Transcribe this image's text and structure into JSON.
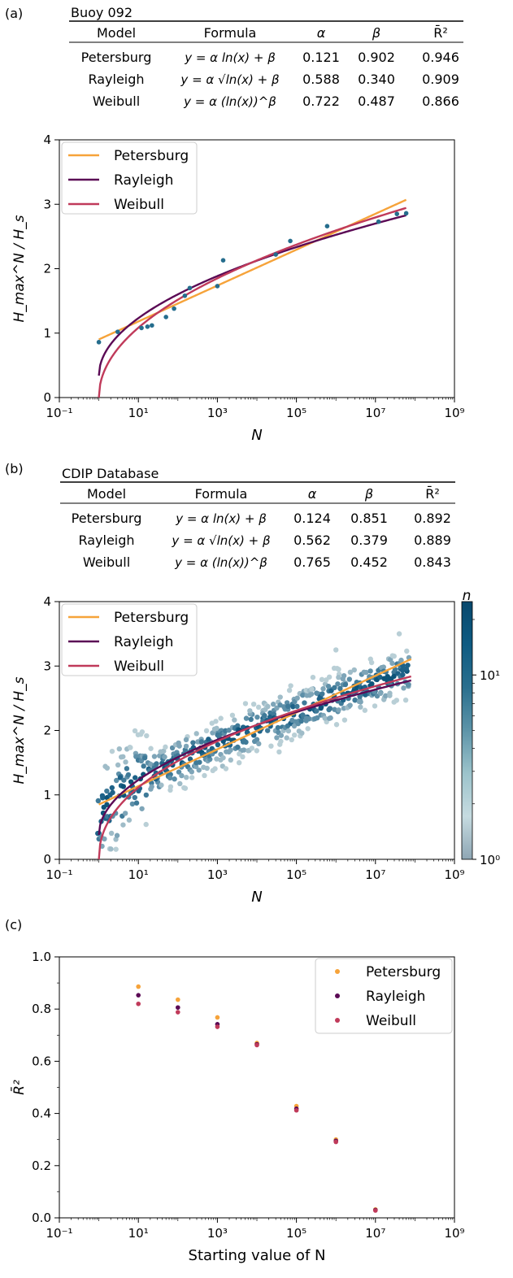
{
  "panel_labels": [
    "(a)",
    "(b)",
    "(c)"
  ],
  "colors": {
    "petersburg": "#f6a33a",
    "rayleigh": "#5b0a55",
    "weibull": "#c03a5a",
    "scatter": "#256d8d"
  },
  "tables": [
    {
      "title": "Buoy 092",
      "headers": [
        "Model",
        "Formula",
        "α",
        "β",
        "R̄²"
      ],
      "rows": [
        {
          "model": "Petersburg",
          "formula": "y = α ln(x) + β",
          "alpha": "0.121",
          "beta": "0.902",
          "r2": "0.946"
        },
        {
          "model": "Rayleigh",
          "formula": "y = α √ln(x) + β",
          "alpha": "0.588",
          "beta": "0.340",
          "r2": "0.909"
        },
        {
          "model": "Weibull",
          "formula": "y = α (ln(x))^β",
          "alpha": "0.722",
          "beta": "0.487",
          "r2": "0.866"
        }
      ]
    },
    {
      "title": "CDIP Database",
      "headers": [
        "Model",
        "Formula",
        "α",
        "β",
        "R̄²"
      ],
      "rows": [
        {
          "model": "Petersburg",
          "formula": "y = α ln(x) + β",
          "alpha": "0.124",
          "beta": "0.851",
          "r2": "0.892"
        },
        {
          "model": "Rayleigh",
          "formula": "y = α √ln(x) + β",
          "alpha": "0.562",
          "beta": "0.379",
          "r2": "0.889"
        },
        {
          "model": "Weibull",
          "formula": "y = α (ln(x))^β",
          "alpha": "0.765",
          "beta": "0.452",
          "r2": "0.843"
        }
      ]
    }
  ],
  "chart_data": [
    {
      "type": "line",
      "xlabel": "N",
      "ylabel": "H_max^N / H_s",
      "xscale": "log",
      "xlim": [
        0.1,
        1000000000
      ],
      "ylim": [
        0,
        4
      ],
      "xticks": [
        "10⁻¹",
        "10¹",
        "10³",
        "10⁵",
        "10⁷",
        "10⁹"
      ],
      "yticks": [
        "0",
        "1",
        "2",
        "3",
        "4"
      ],
      "legend": [
        "Petersburg",
        "Rayleigh",
        "Weibull"
      ],
      "legend_position": "upper-left",
      "series": [
        {
          "name": "Petersburg",
          "model": "petersburg",
          "alpha": 0.121,
          "beta": 0.902,
          "xrange": [
            1,
            60000000
          ]
        },
        {
          "name": "Rayleigh",
          "model": "rayleigh",
          "alpha": 0.588,
          "beta": 0.34,
          "xrange": [
            1,
            60000000
          ]
        },
        {
          "name": "Weibull",
          "model": "weibull",
          "alpha": 0.722,
          "beta": 0.487,
          "xrange": [
            1,
            60000000
          ]
        }
      ],
      "points": [
        {
          "x": 1,
          "y": 0.86
        },
        {
          "x": 3,
          "y": 1.02
        },
        {
          "x": 12,
          "y": 1.08
        },
        {
          "x": 17,
          "y": 1.1
        },
        {
          "x": 22,
          "y": 1.12
        },
        {
          "x": 50,
          "y": 1.25
        },
        {
          "x": 80,
          "y": 1.38
        },
        {
          "x": 150,
          "y": 1.58
        },
        {
          "x": 200,
          "y": 1.7
        },
        {
          "x": 1000,
          "y": 1.73
        },
        {
          "x": 1400,
          "y": 2.13
        },
        {
          "x": 30000,
          "y": 2.22
        },
        {
          "x": 70000,
          "y": 2.43
        },
        {
          "x": 600000,
          "y": 2.66
        },
        {
          "x": 12000000,
          "y": 2.73
        },
        {
          "x": 35000000,
          "y": 2.85
        },
        {
          "x": 60000000,
          "y": 2.86
        }
      ]
    },
    {
      "type": "heatmap",
      "xlabel": "N",
      "ylabel": "H_max^N / H_s",
      "xscale": "log",
      "xlim": [
        0.1,
        1000000000
      ],
      "ylim": [
        0,
        4
      ],
      "xticks": [
        "10⁻¹",
        "10¹",
        "10³",
        "10⁵",
        "10⁷",
        "10⁹"
      ],
      "yticks": [
        "0",
        "1",
        "2",
        "3",
        "4"
      ],
      "legend": [
        "Petersburg",
        "Rayleigh",
        "Weibull"
      ],
      "legend_position": "upper-left",
      "colorbar": {
        "label": "n",
        "scale": "log",
        "range": [
          1,
          25
        ],
        "ticks": [
          "10⁰",
          "10¹"
        ]
      },
      "series": [
        {
          "name": "Petersburg",
          "model": "petersburg",
          "alpha": 0.124,
          "beta": 0.851,
          "xrange": [
            1,
            80000000
          ]
        },
        {
          "name": "Rayleigh",
          "model": "rayleigh",
          "alpha": 0.562,
          "beta": 0.379,
          "xrange": [
            1,
            80000000
          ]
        },
        {
          "name": "Weibull",
          "model": "weibull",
          "alpha": 0.765,
          "beta": 0.452,
          "xrange": [
            1,
            80000000
          ]
        }
      ],
      "density_band": {
        "center_model": "petersburg",
        "spread": 0.35,
        "outliers": [
          {
            "x": 40000000,
            "y": 3.5
          },
          {
            "x": 1000000,
            "y": 3.25
          }
        ]
      }
    },
    {
      "type": "scatter",
      "xlabel": "Starting value of N",
      "ylabel": "R̄²",
      "xscale": "log",
      "xlim": [
        0.1,
        1000000000
      ],
      "ylim": [
        0,
        1
      ],
      "xticks": [
        "10⁻¹",
        "10¹",
        "10³",
        "10⁵",
        "10⁷",
        "10⁹"
      ],
      "yticks": [
        "0.0",
        "0.2",
        "0.4",
        "0.6",
        "0.8",
        "1.0"
      ],
      "legend": [
        "Petersburg",
        "Rayleigh",
        "Weibull"
      ],
      "legend_position": "upper-right",
      "x": [
        10,
        100,
        1000,
        10000,
        100000,
        1000000,
        10000000
      ],
      "series": [
        {
          "name": "Petersburg",
          "model": "petersburg",
          "values": [
            0.886,
            0.836,
            0.768,
            0.67,
            0.428,
            0.3,
            0.032
          ]
        },
        {
          "name": "Rayleigh",
          "model": "rayleigh",
          "values": [
            0.853,
            0.806,
            0.742,
            0.665,
            0.418,
            0.295,
            0.03
          ]
        },
        {
          "name": "Weibull",
          "model": "weibull",
          "values": [
            0.82,
            0.788,
            0.732,
            0.662,
            0.412,
            0.291,
            0.028
          ]
        }
      ]
    }
  ]
}
